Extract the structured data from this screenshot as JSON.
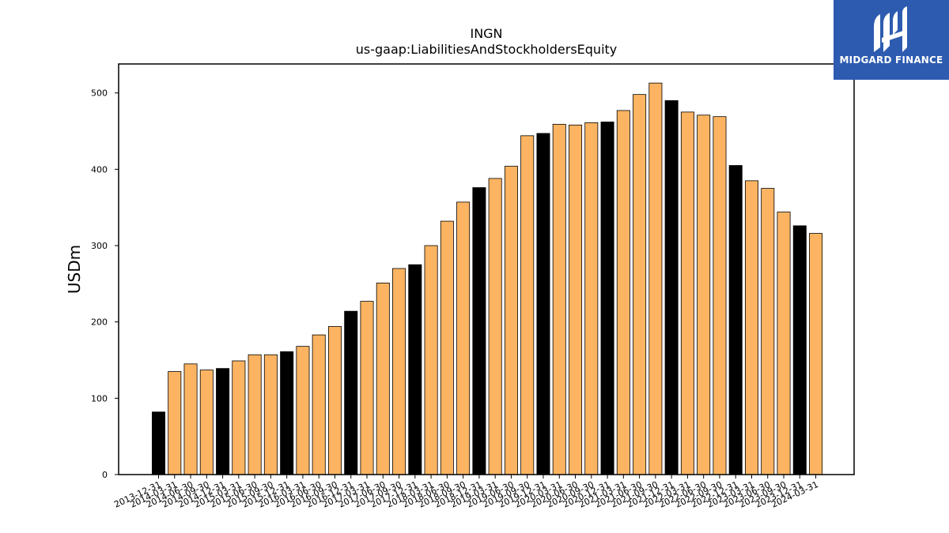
{
  "brand": {
    "name": "MIDGARD FINANCE",
    "bg_color": "#2d5bb0"
  },
  "colors": {
    "bar_fill": "#fdb462",
    "highlight_fill": "#000000",
    "edge": "#000000"
  },
  "chart_data": {
    "type": "bar",
    "title": "INGN",
    "subtitle": "us-gaap:LiabilitiesAndStockholdersEquity",
    "xlabel": "",
    "ylabel": "USDm",
    "ylim": [
      0,
      538
    ],
    "yticks": [
      0,
      100,
      200,
      300,
      400,
      500
    ],
    "grid": false,
    "categories": [
      "2013-12-31",
      "2014-03-31",
      "2014-06-30",
      "2014-09-30",
      "2014-12-31",
      "2015-03-31",
      "2015-06-30",
      "2015-09-30",
      "2015-12-31",
      "2016-03-31",
      "2016-06-30",
      "2016-09-30",
      "2016-12-31",
      "2017-03-31",
      "2017-06-30",
      "2017-09-30",
      "2017-12-31",
      "2018-03-31",
      "2018-06-30",
      "2018-09-30",
      "2018-12-31",
      "2019-03-31",
      "2019-06-30",
      "2019-09-30",
      "2019-12-31",
      "2020-03-31",
      "2020-06-30",
      "2020-09-30",
      "2020-12-31",
      "2021-03-31",
      "2021-06-30",
      "2021-09-30",
      "2021-12-31",
      "2022-03-31",
      "2022-06-30",
      "2022-09-30",
      "2022-12-31",
      "2023-03-31",
      "2023-06-30",
      "2023-09-30",
      "2023-12-31",
      "2024-03-31"
    ],
    "values": [
      82,
      135,
      145,
      137,
      139,
      149,
      157,
      157,
      161,
      168,
      183,
      194,
      214,
      227,
      251,
      270,
      275,
      300,
      332,
      357,
      376,
      388,
      404,
      444,
      447,
      459,
      458,
      461,
      462,
      477,
      498,
      513,
      490,
      475,
      471,
      469,
      405,
      385,
      375,
      344,
      326,
      316
    ],
    "highlighted_categories": [
      "2013-12-31",
      "2014-12-31",
      "2015-12-31",
      "2016-12-31",
      "2017-12-31",
      "2018-12-31",
      "2019-12-31",
      "2020-12-31",
      "2021-12-31",
      "2022-12-31",
      "2023-12-31"
    ]
  }
}
